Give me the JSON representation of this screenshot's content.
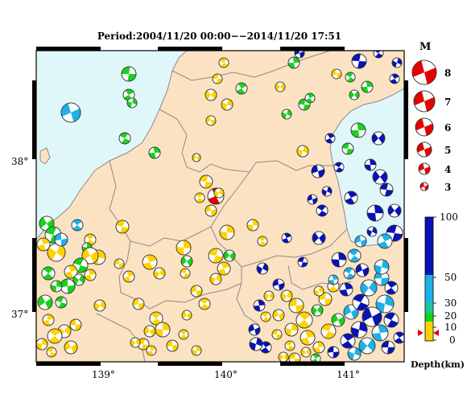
{
  "title": "Period:2004/11/20 00:00−−2014/11/20 17:51",
  "lon_ticks": [
    "139°",
    "140°",
    "141°"
  ],
  "lat_ticks": [
    "38°",
    "37°"
  ],
  "magnitude_legend": {
    "header": "M",
    "items": [
      "8",
      "7",
      "6",
      "5",
      "4",
      "3"
    ]
  },
  "depth_legend": {
    "label": "Depth(km)",
    "ticks": [
      "100",
      "50",
      "30",
      "20",
      "10",
      "0"
    ],
    "colors": {
      "deep": "#0a12b4",
      "mid": "#1fb0e6",
      "shallow_green": "#19d21e",
      "shallow_yellow": "#ffd200",
      "marker": "#e60000"
    }
  },
  "map_colors": {
    "land": "#fbe2c2",
    "sea": "#e0f7f9",
    "border": "#8a8a8a"
  }
}
